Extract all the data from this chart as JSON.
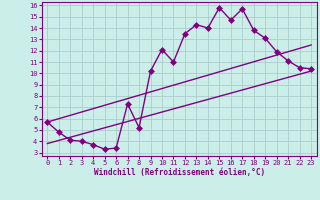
{
  "xlabel": "Windchill (Refroidissement éolien,°C)",
  "bg_color": "#cceee8",
  "line_color": "#800080",
  "grid_color": "#aacccc",
  "xlim": [
    -0.5,
    23.5
  ],
  "ylim": [
    2.7,
    16.3
  ],
  "xticks": [
    0,
    1,
    2,
    3,
    4,
    5,
    6,
    7,
    8,
    9,
    10,
    11,
    12,
    13,
    14,
    15,
    16,
    17,
    18,
    19,
    20,
    21,
    22,
    23
  ],
  "yticks": [
    3,
    4,
    5,
    6,
    7,
    8,
    9,
    10,
    11,
    12,
    13,
    14,
    15,
    16
  ],
  "line1_x": [
    0,
    1,
    2,
    3,
    4,
    5,
    6,
    7,
    8,
    9,
    10,
    11,
    12,
    13,
    14,
    15,
    16,
    17,
    18,
    19,
    20,
    21,
    22,
    23
  ],
  "line1_y": [
    5.7,
    4.8,
    4.1,
    4.0,
    3.7,
    3.3,
    3.4,
    7.3,
    5.2,
    10.2,
    12.1,
    11.0,
    13.5,
    14.3,
    14.0,
    15.8,
    14.7,
    15.7,
    13.8,
    13.1,
    11.9,
    11.1,
    10.5,
    10.4
  ],
  "line2_x": [
    0,
    23
  ],
  "line2_y": [
    3.8,
    10.2
  ],
  "line3_x": [
    0,
    23
  ],
  "line3_y": [
    5.7,
    12.5
  ]
}
